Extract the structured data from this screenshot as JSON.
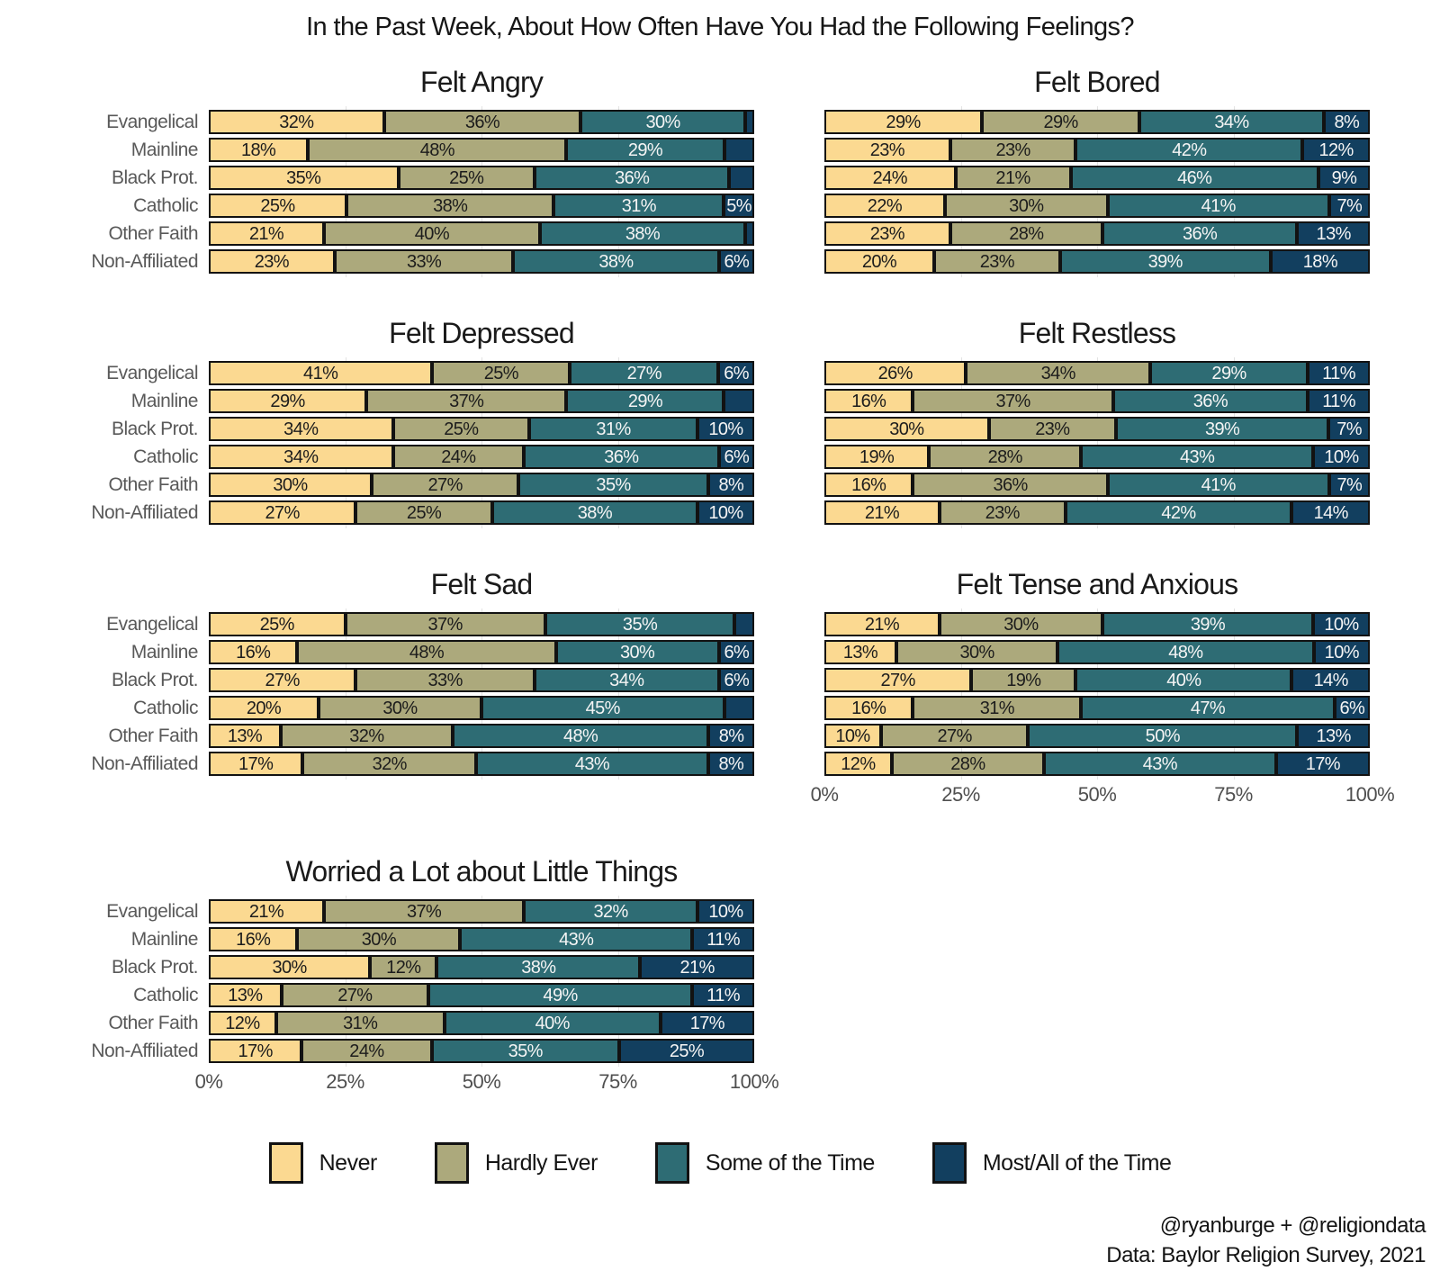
{
  "header": {
    "title": "In the Past Week, About How Often Have You Had the Following Feelings?"
  },
  "groups": [
    "Evangelical",
    "Mainline",
    "Black Prot.",
    "Catholic",
    "Other Faith",
    "Non-Affiliated"
  ],
  "x_ticks": [
    "0%",
    "25%",
    "50%",
    "75%",
    "100%"
  ],
  "legend": [
    {
      "label": "Never",
      "color": "#FBD991",
      "text_color": "#1c1c1c"
    },
    {
      "label": "Hardly Ever",
      "color": "#ACA97C",
      "text_color": "#1c1c1c"
    },
    {
      "label": "Some of the Time",
      "color": "#2E6C74",
      "text_color": "#f5f5f5"
    },
    {
      "label": "Most/All of the Time",
      "color": "#123F5F",
      "text_color": "#f5f5f5"
    }
  ],
  "chart_data": [
    {
      "type": "stacked_bar_horizontal",
      "title": "Felt Angry",
      "show_y_labels": true,
      "show_x_axis": false,
      "categories": [
        "Evangelical",
        "Mainline",
        "Black Prot.",
        "Catholic",
        "Other Faith",
        "Non-Affiliated"
      ],
      "series_names": [
        "Never",
        "Hardly Ever",
        "Some of the Time",
        "Most/All of the Time"
      ],
      "xlim": [
        0,
        100
      ],
      "rows": [
        [
          [
            32,
            "32%"
          ],
          [
            36,
            "36%"
          ],
          [
            30,
            "30%"
          ],
          [
            1,
            ""
          ]
        ],
        [
          [
            18,
            "18%"
          ],
          [
            48,
            "48%"
          ],
          [
            29,
            "29%"
          ],
          [
            5,
            ""
          ]
        ],
        [
          [
            35,
            "35%"
          ],
          [
            25,
            "25%"
          ],
          [
            36,
            "36%"
          ],
          [
            4,
            ""
          ]
        ],
        [
          [
            25,
            "25%"
          ],
          [
            38,
            "38%"
          ],
          [
            31,
            "31%"
          ],
          [
            5,
            "5%"
          ]
        ],
        [
          [
            21,
            "21%"
          ],
          [
            40,
            "40%"
          ],
          [
            38,
            "38%"
          ],
          [
            1,
            ""
          ]
        ],
        [
          [
            23,
            "23%"
          ],
          [
            33,
            "33%"
          ],
          [
            38,
            "38%"
          ],
          [
            6,
            "6%"
          ]
        ]
      ]
    },
    {
      "type": "stacked_bar_horizontal",
      "title": "Felt Bored",
      "show_y_labels": false,
      "show_x_axis": false,
      "categories": [
        "Evangelical",
        "Mainline",
        "Black Prot.",
        "Catholic",
        "Other Faith",
        "Non-Affiliated"
      ],
      "series_names": [
        "Never",
        "Hardly Ever",
        "Some of the Time",
        "Most/All of the Time"
      ],
      "xlim": [
        0,
        100
      ],
      "rows": [
        [
          [
            29,
            "29%"
          ],
          [
            29,
            "29%"
          ],
          [
            34,
            "34%"
          ],
          [
            8,
            "8%"
          ]
        ],
        [
          [
            23,
            "23%"
          ],
          [
            23,
            "23%"
          ],
          [
            42,
            "42%"
          ],
          [
            12,
            "12%"
          ]
        ],
        [
          [
            24,
            "24%"
          ],
          [
            21,
            "21%"
          ],
          [
            46,
            "46%"
          ],
          [
            9,
            "9%"
          ]
        ],
        [
          [
            22,
            "22%"
          ],
          [
            30,
            "30%"
          ],
          [
            41,
            "41%"
          ],
          [
            7,
            "7%"
          ]
        ],
        [
          [
            23,
            "23%"
          ],
          [
            28,
            "28%"
          ],
          [
            36,
            "36%"
          ],
          [
            13,
            "13%"
          ]
        ],
        [
          [
            20,
            "20%"
          ],
          [
            23,
            "23%"
          ],
          [
            39,
            "39%"
          ],
          [
            18,
            "18%"
          ]
        ]
      ]
    },
    {
      "type": "stacked_bar_horizontal",
      "title": "Felt Depressed",
      "show_y_labels": true,
      "show_x_axis": false,
      "categories": [
        "Evangelical",
        "Mainline",
        "Black Prot.",
        "Catholic",
        "Other Faith",
        "Non-Affiliated"
      ],
      "series_names": [
        "Never",
        "Hardly Ever",
        "Some of the Time",
        "Most/All of the Time"
      ],
      "xlim": [
        0,
        100
      ],
      "rows": [
        [
          [
            41,
            "41%"
          ],
          [
            25,
            "25%"
          ],
          [
            27,
            "27%"
          ],
          [
            6,
            "6%"
          ]
        ],
        [
          [
            29,
            "29%"
          ],
          [
            37,
            "37%"
          ],
          [
            29,
            "29%"
          ],
          [
            5,
            ""
          ]
        ],
        [
          [
            34,
            "34%"
          ],
          [
            25,
            "25%"
          ],
          [
            31,
            "31%"
          ],
          [
            10,
            "10%"
          ]
        ],
        [
          [
            34,
            "34%"
          ],
          [
            24,
            "24%"
          ],
          [
            36,
            "36%"
          ],
          [
            6,
            "6%"
          ]
        ],
        [
          [
            30,
            "30%"
          ],
          [
            27,
            "27%"
          ],
          [
            35,
            "35%"
          ],
          [
            8,
            "8%"
          ]
        ],
        [
          [
            27,
            "27%"
          ],
          [
            25,
            "25%"
          ],
          [
            38,
            "38%"
          ],
          [
            10,
            "10%"
          ]
        ]
      ]
    },
    {
      "type": "stacked_bar_horizontal",
      "title": "Felt Restless",
      "show_y_labels": false,
      "show_x_axis": false,
      "categories": [
        "Evangelical",
        "Mainline",
        "Black Prot.",
        "Catholic",
        "Other Faith",
        "Non-Affiliated"
      ],
      "series_names": [
        "Never",
        "Hardly Ever",
        "Some of the Time",
        "Most/All of the Time"
      ],
      "xlim": [
        0,
        100
      ],
      "rows": [
        [
          [
            26,
            "26%"
          ],
          [
            34,
            "34%"
          ],
          [
            29,
            "29%"
          ],
          [
            11,
            "11%"
          ]
        ],
        [
          [
            16,
            "16%"
          ],
          [
            37,
            "37%"
          ],
          [
            36,
            "36%"
          ],
          [
            11,
            "11%"
          ]
        ],
        [
          [
            30,
            "30%"
          ],
          [
            23,
            "23%"
          ],
          [
            39,
            "39%"
          ],
          [
            7,
            "7%"
          ]
        ],
        [
          [
            19,
            "19%"
          ],
          [
            28,
            "28%"
          ],
          [
            43,
            "43%"
          ],
          [
            10,
            "10%"
          ]
        ],
        [
          [
            16,
            "16%"
          ],
          [
            36,
            "36%"
          ],
          [
            41,
            "41%"
          ],
          [
            7,
            "7%"
          ]
        ],
        [
          [
            21,
            "21%"
          ],
          [
            23,
            "23%"
          ],
          [
            42,
            "42%"
          ],
          [
            14,
            "14%"
          ]
        ]
      ]
    },
    {
      "type": "stacked_bar_horizontal",
      "title": "Felt Sad",
      "show_y_labels": true,
      "show_x_axis": false,
      "categories": [
        "Evangelical",
        "Mainline",
        "Black Prot.",
        "Catholic",
        "Other Faith",
        "Non-Affiliated"
      ],
      "series_names": [
        "Never",
        "Hardly Ever",
        "Some of the Time",
        "Most/All of the Time"
      ],
      "xlim": [
        0,
        100
      ],
      "rows": [
        [
          [
            25,
            "25%"
          ],
          [
            37,
            "37%"
          ],
          [
            35,
            "35%"
          ],
          [
            3,
            ""
          ]
        ],
        [
          [
            16,
            "16%"
          ],
          [
            48,
            "48%"
          ],
          [
            30,
            "30%"
          ],
          [
            6,
            "6%"
          ]
        ],
        [
          [
            27,
            "27%"
          ],
          [
            33,
            "33%"
          ],
          [
            34,
            "34%"
          ],
          [
            6,
            "6%"
          ]
        ],
        [
          [
            20,
            "20%"
          ],
          [
            30,
            "30%"
          ],
          [
            45,
            "45%"
          ],
          [
            5,
            ""
          ]
        ],
        [
          [
            13,
            "13%"
          ],
          [
            32,
            "32%"
          ],
          [
            48,
            "48%"
          ],
          [
            8,
            "8%"
          ]
        ],
        [
          [
            17,
            "17%"
          ],
          [
            32,
            "32%"
          ],
          [
            43,
            "43%"
          ],
          [
            8,
            "8%"
          ]
        ]
      ]
    },
    {
      "type": "stacked_bar_horizontal",
      "title": "Felt Tense and Anxious",
      "show_y_labels": false,
      "show_x_axis": true,
      "categories": [
        "Evangelical",
        "Mainline",
        "Black Prot.",
        "Catholic",
        "Other Faith",
        "Non-Affiliated"
      ],
      "series_names": [
        "Never",
        "Hardly Ever",
        "Some of the Time",
        "Most/All of the Time"
      ],
      "xlim": [
        0,
        100
      ],
      "rows": [
        [
          [
            21,
            "21%"
          ],
          [
            30,
            "30%"
          ],
          [
            39,
            "39%"
          ],
          [
            10,
            "10%"
          ]
        ],
        [
          [
            13,
            "13%"
          ],
          [
            30,
            "30%"
          ],
          [
            48,
            "48%"
          ],
          [
            10,
            "10%"
          ]
        ],
        [
          [
            27,
            "27%"
          ],
          [
            19,
            "19%"
          ],
          [
            40,
            "40%"
          ],
          [
            14,
            "14%"
          ]
        ],
        [
          [
            16,
            "16%"
          ],
          [
            31,
            "31%"
          ],
          [
            47,
            "47%"
          ],
          [
            6,
            "6%"
          ]
        ],
        [
          [
            10,
            "10%"
          ],
          [
            27,
            "27%"
          ],
          [
            50,
            "50%"
          ],
          [
            13,
            "13%"
          ]
        ],
        [
          [
            12,
            "12%"
          ],
          [
            28,
            "28%"
          ],
          [
            43,
            "43%"
          ],
          [
            17,
            "17%"
          ]
        ]
      ]
    },
    {
      "type": "stacked_bar_horizontal",
      "title": "Worried a Lot about Little Things",
      "show_y_labels": true,
      "show_x_axis": true,
      "categories": [
        "Evangelical",
        "Mainline",
        "Black Prot.",
        "Catholic",
        "Other Faith",
        "Non-Affiliated"
      ],
      "series_names": [
        "Never",
        "Hardly Ever",
        "Some of the Time",
        "Most/All of the Time"
      ],
      "xlim": [
        0,
        100
      ],
      "rows": [
        [
          [
            21,
            "21%"
          ],
          [
            37,
            "37%"
          ],
          [
            32,
            "32%"
          ],
          [
            10,
            "10%"
          ]
        ],
        [
          [
            16,
            "16%"
          ],
          [
            30,
            "30%"
          ],
          [
            43,
            "43%"
          ],
          [
            11,
            "11%"
          ]
        ],
        [
          [
            30,
            "30%"
          ],
          [
            12,
            "12%"
          ],
          [
            38,
            "38%"
          ],
          [
            21,
            "21%"
          ]
        ],
        [
          [
            13,
            "13%"
          ],
          [
            27,
            "27%"
          ],
          [
            49,
            "49%"
          ],
          [
            11,
            "11%"
          ]
        ],
        [
          [
            12,
            "12%"
          ],
          [
            31,
            "31%"
          ],
          [
            40,
            "40%"
          ],
          [
            17,
            "17%"
          ]
        ],
        [
          [
            17,
            "17%"
          ],
          [
            24,
            "24%"
          ],
          [
            35,
            "35%"
          ],
          [
            25,
            "25%"
          ]
        ]
      ]
    }
  ],
  "footer": {
    "line1": "@ryanburge + @religiondata",
    "line2": "Data: Baylor Religion Survey, 2021"
  }
}
